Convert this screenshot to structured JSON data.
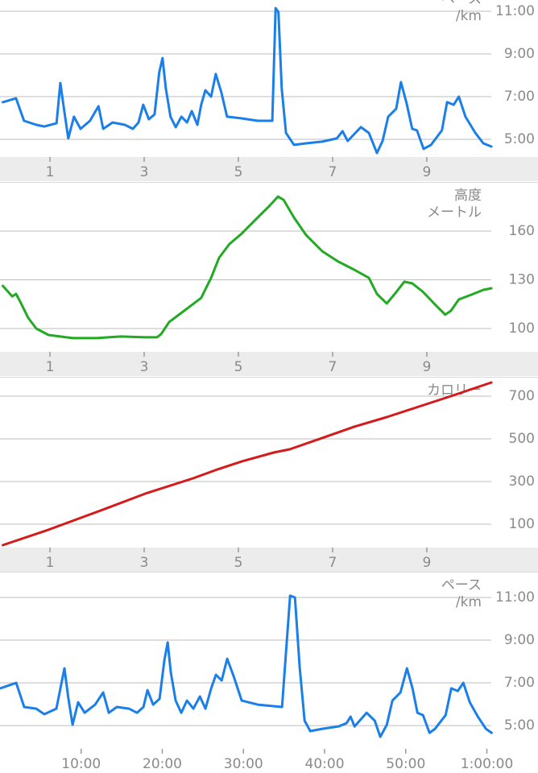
{
  "chart_data": [
    {
      "type": "line",
      "y_label": "ペース",
      "y_unit": "/km",
      "color": "#1a7fe8",
      "grid": true,
      "xlim": [
        -0.06,
        11.36
      ],
      "ylim": [
        4.17,
        11.53
      ],
      "xticks": [
        1,
        3,
        5,
        7,
        9
      ],
      "yticks": [
        {
          "value": 11,
          "label": "11:00"
        },
        {
          "value": 9,
          "label": "9:00"
        },
        {
          "value": 7,
          "label": "7:00"
        },
        {
          "value": 5,
          "label": "5:00"
        }
      ],
      "x": [
        0,
        0.28,
        0.45,
        0.71,
        0.88,
        1.14,
        1.22,
        1.31,
        1.39,
        1.51,
        1.65,
        1.85,
        2.03,
        2.13,
        2.33,
        2.59,
        2.76,
        2.88,
        2.98,
        3.1,
        3.22,
        3.32,
        3.39,
        3.46,
        3.56,
        3.67,
        3.79,
        3.91,
        4.01,
        4.13,
        4.21,
        4.3,
        4.42,
        4.52,
        4.64,
        4.76,
        5.07,
        5.41,
        5.72,
        5.79,
        5.85,
        5.92,
        6.01,
        6.18,
        6.44,
        6.78,
        7.09,
        7.21,
        7.32,
        7.6,
        7.77,
        7.94,
        8.06,
        8.18,
        8.35,
        8.45,
        8.57,
        8.69,
        8.79,
        8.93,
        9.09,
        9.32,
        9.43,
        9.57,
        9.68,
        9.82,
        10.03,
        10.2,
        10.37
      ],
      "values": [
        6.74,
        6.92,
        5.87,
        5.68,
        5.6,
        5.75,
        7.64,
        6.25,
        5.04,
        6.06,
        5.49,
        5.87,
        6.55,
        5.49,
        5.79,
        5.68,
        5.49,
        5.79,
        6.62,
        5.94,
        6.17,
        8.13,
        8.81,
        7.38,
        6.06,
        5.57,
        6.06,
        5.79,
        6.32,
        5.68,
        6.62,
        7.3,
        7.0,
        8.06,
        7.19,
        6.06,
        5.98,
        5.87,
        5.87,
        11.15,
        10.96,
        7.38,
        5.3,
        4.74,
        4.81,
        4.89,
        5.04,
        5.38,
        4.92,
        5.57,
        5.3,
        4.36,
        4.92,
        6.06,
        6.43,
        7.68,
        6.7,
        5.49,
        5.42,
        4.55,
        4.74,
        5.42,
        6.74,
        6.62,
        7.0,
        6.06,
        5.3,
        4.81,
        4.66
      ]
    },
    {
      "type": "line",
      "y_label": "高度",
      "y_unit": "メートル",
      "color": "#22aa22",
      "grid": true,
      "xlim": [
        -0.06,
        11.36
      ],
      "ylim": [
        85.6,
        189.3
      ],
      "xticks": [
        1,
        3,
        5,
        7,
        9
      ],
      "yticks": [
        160,
        130,
        100
      ],
      "x": [
        0,
        0.2,
        0.28,
        0.37,
        0.54,
        0.71,
        0.97,
        1.48,
        1.99,
        2.5,
        3.02,
        3.27,
        3.36,
        3.53,
        3.87,
        4.21,
        4.42,
        4.59,
        4.81,
        5.07,
        5.41,
        5.67,
        5.84,
        5.96,
        6.18,
        6.44,
        6.78,
        7.12,
        7.46,
        7.77,
        7.94,
        8.15,
        8.32,
        8.52,
        8.69,
        8.91,
        9.17,
        9.39,
        9.51,
        9.68,
        9.94,
        10.2,
        10.37
      ],
      "values": [
        126.3,
        119.8,
        121.3,
        116.4,
        106.5,
        100.0,
        96.0,
        94.1,
        94.1,
        95.1,
        94.6,
        94.6,
        96.5,
        104.0,
        111.4,
        118.9,
        131.2,
        143.6,
        152.1,
        158.5,
        168.4,
        175.9,
        181.3,
        179.3,
        168.4,
        157.5,
        147.6,
        141.2,
        136.2,
        131.2,
        121.3,
        115.4,
        121.3,
        128.8,
        127.8,
        122.8,
        114.9,
        108.5,
        110.9,
        117.9,
        120.8,
        123.8,
        124.8
      ]
    },
    {
      "type": "line",
      "y_label": "カロリー",
      "color": "#d41a1a",
      "grid": true,
      "xlim": [
        -0.06,
        11.36
      ],
      "ylim": [
        -9.4,
        783
      ],
      "xticks": [
        1,
        3,
        5,
        7,
        9
      ],
      "yticks": [
        700,
        500,
        300,
        100
      ],
      "x": [
        0,
        0.97,
        1.99,
        3.02,
        4.04,
        4.56,
        5.07,
        5.75,
        6.09,
        6.78,
        7.46,
        8.15,
        8.83,
        9.51,
        10.37
      ],
      "values": [
        2,
        74,
        157,
        243,
        315,
        357,
        394,
        436,
        451,
        504,
        557,
        602,
        651,
        700,
        764
      ]
    },
    {
      "type": "line",
      "y_label": "ペース",
      "y_unit": "/km",
      "color": "#1a7fe8",
      "grid": true,
      "xlim": [
        0,
        66.3
      ],
      "ylim": [
        3.91,
        12.13
      ],
      "xticks": [
        {
          "value": 10,
          "label": "10:00"
        },
        {
          "value": 20,
          "label": "20:00"
        },
        {
          "value": 30,
          "label": "30:00"
        },
        {
          "value": 40,
          "label": "40:00"
        },
        {
          "value": 50,
          "label": "50:00"
        },
        {
          "value": 60,
          "label": "1:00:00"
        }
      ],
      "yticks": [
        {
          "value": 11,
          "label": "11:00"
        },
        {
          "value": 9,
          "label": "9:00"
        },
        {
          "value": 7,
          "label": "7:00"
        },
        {
          "value": 5,
          "label": "5:00"
        }
      ],
      "x": [
        0,
        1.99,
        2.98,
        4.47,
        5.46,
        6.95,
        7.94,
        8.44,
        8.94,
        9.63,
        10.43,
        11.72,
        12.71,
        13.41,
        14.4,
        15.89,
        16.88,
        17.68,
        18.17,
        18.87,
        19.66,
        20.26,
        20.66,
        21.05,
        21.65,
        22.34,
        23.04,
        23.83,
        24.63,
        25.32,
        26.02,
        26.61,
        27.31,
        28.0,
        28.8,
        29.79,
        31.78,
        34.76,
        35.75,
        36.35,
        36.94,
        37.54,
        38.23,
        39.72,
        41.71,
        42.7,
        43.2,
        43.69,
        45.18,
        46.18,
        46.87,
        47.67,
        48.36,
        49.35,
        50.15,
        50.84,
        51.44,
        52.13,
        52.93,
        53.62,
        54.92,
        55.61,
        56.41,
        57.1,
        57.89,
        58.89,
        59.88,
        60.58
      ],
      "values": [
        6.74,
        7.0,
        5.87,
        5.79,
        5.53,
        5.79,
        7.68,
        6.25,
        5.04,
        6.09,
        5.6,
        5.98,
        6.55,
        5.6,
        5.87,
        5.79,
        5.6,
        5.87,
        6.66,
        5.98,
        6.25,
        8.06,
        8.89,
        7.49,
        6.17,
        5.6,
        6.17,
        5.79,
        6.36,
        5.79,
        6.74,
        7.38,
        7.11,
        8.13,
        7.3,
        6.17,
        5.98,
        5.87,
        11.08,
        11.0,
        7.68,
        5.23,
        4.74,
        4.85,
        4.96,
        5.11,
        5.42,
        4.96,
        5.6,
        5.23,
        4.47,
        5.04,
        6.17,
        6.55,
        7.68,
        6.74,
        5.6,
        5.49,
        4.66,
        4.85,
        5.49,
        6.74,
        6.62,
        7.0,
        6.09,
        5.42,
        4.85,
        4.66
      ]
    }
  ]
}
